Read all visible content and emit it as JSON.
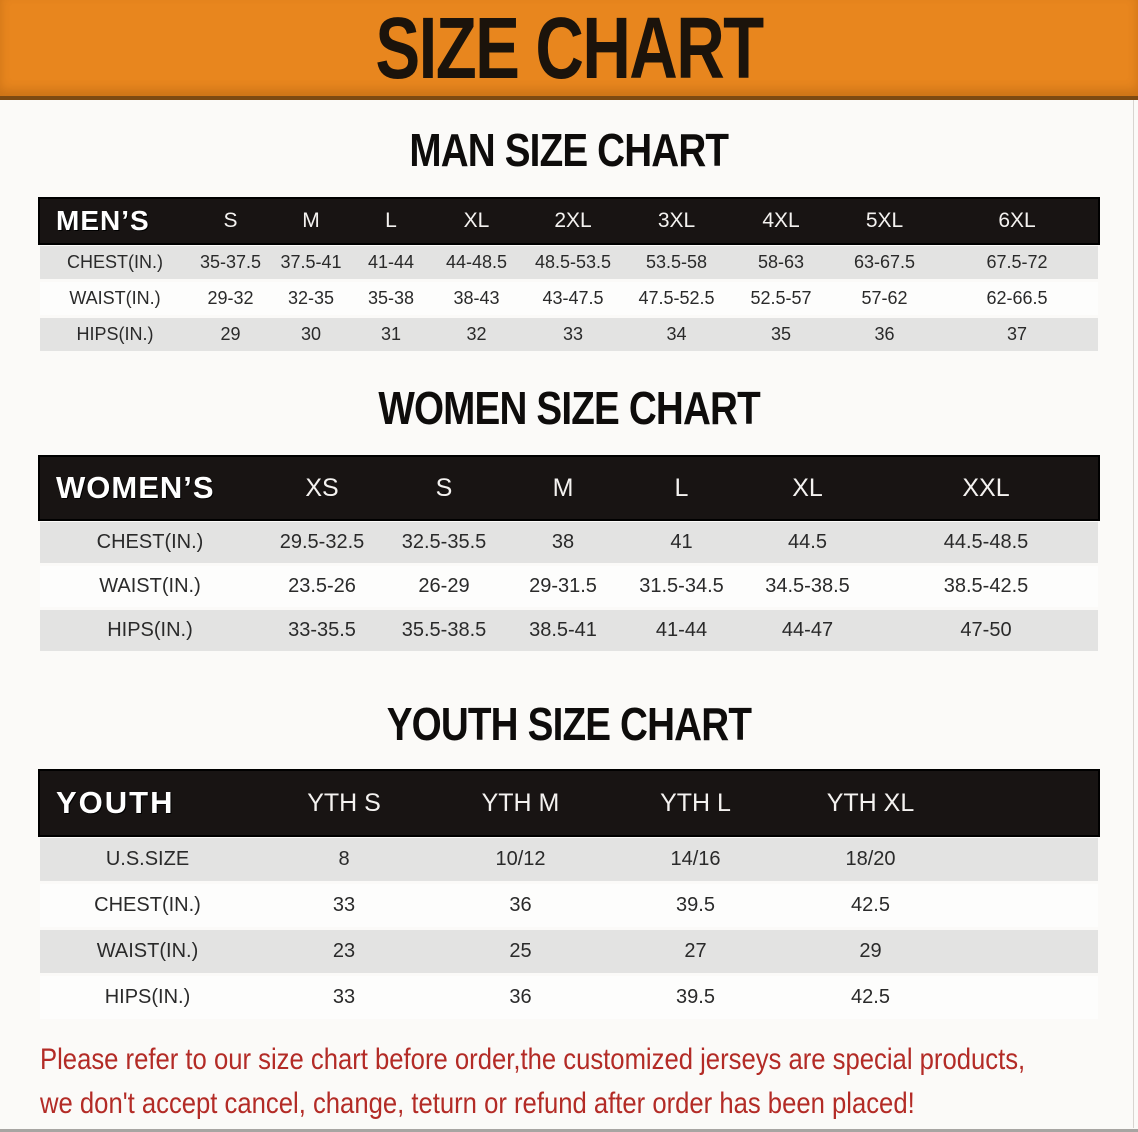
{
  "banner": {
    "title": "SIZE CHART",
    "bg_color": "#e8861e",
    "text_color": "#1b130b"
  },
  "sections": [
    {
      "heading": "MAN SIZE CHART",
      "header_label": "MEN’S",
      "columns": [
        "S",
        "M",
        "L",
        "XL",
        "2XL",
        "3XL",
        "4XL",
        "5XL",
        "6XL"
      ],
      "rows": [
        {
          "label": "CHEST(IN.)",
          "values": [
            "35-37.5",
            "37.5-41",
            "41-44",
            "44-48.5",
            "48.5-53.5",
            "53.5-58",
            "58-63",
            "63-67.5",
            "67.5-72"
          ]
        },
        {
          "label": "WAIST(IN.)",
          "values": [
            "29-32",
            "32-35",
            "35-38",
            "38-43",
            "43-47.5",
            "47.5-52.5",
            "52.5-57",
            "57-62",
            "62-66.5"
          ]
        },
        {
          "label": "HIPS(IN.)",
          "values": [
            "29",
            "30",
            "31",
            "32",
            "33",
            "34",
            "35",
            "36",
            "37"
          ]
        }
      ]
    },
    {
      "heading": "WOMEN SIZE CHART",
      "header_label": "WOMEN’S",
      "columns": [
        "XS",
        "S",
        "M",
        "L",
        "XL",
        "XXL"
      ],
      "rows": [
        {
          "label": "CHEST(IN.)",
          "values": [
            "29.5-32.5",
            "32.5-35.5",
            "38",
            "41",
            "44.5",
            "44.5-48.5"
          ]
        },
        {
          "label": "WAIST(IN.)",
          "values": [
            "23.5-26",
            "26-29",
            "29-31.5",
            "31.5-34.5",
            "34.5-38.5",
            "38.5-42.5"
          ]
        },
        {
          "label": "HIPS(IN.)",
          "values": [
            "33-35.5",
            "35.5-38.5",
            "38.5-41",
            "41-44",
            "44-47",
            "47-50"
          ]
        }
      ]
    },
    {
      "heading": "YOUTH SIZE CHART",
      "header_label": "YOUTH",
      "columns": [
        "YTH S",
        "YTH M",
        "YTH L",
        "YTH XL"
      ],
      "rows": [
        {
          "label": "U.S.SIZE",
          "values": [
            "8",
            "10/12",
            "14/16",
            "18/20"
          ]
        },
        {
          "label": "CHEST(IN.)",
          "values": [
            "33",
            "36",
            "39.5",
            "42.5"
          ]
        },
        {
          "label": "WAIST(IN.)",
          "values": [
            "23",
            "25",
            "27",
            "29"
          ]
        },
        {
          "label": "HIPS(IN.)",
          "values": [
            "33",
            "36",
            "39.5",
            "42.5"
          ]
        }
      ]
    }
  ],
  "disclaimer": {
    "line1": "Please refer to our size chart before order,the customized jerseys are special products,",
    "line2": "we don't accept cancel, change, teturn or refund after order has been placed!",
    "text_color": "#b32b26"
  },
  "row_colors": {
    "header_bg": "#181413",
    "shade_bg": "#e3e3e2",
    "plain_bg": "#fdfdfc"
  }
}
